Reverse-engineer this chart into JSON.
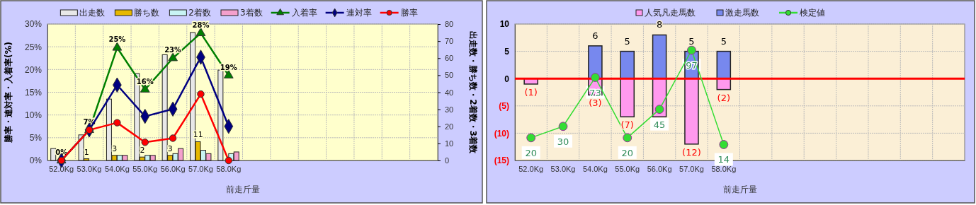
{
  "chart_data": [
    {
      "type": "bar",
      "xlabel": "前走斤量",
      "ylabel": "勝率・連対率・入着率(%)",
      "y2label": "出走数・勝ち数・2着数・3着数",
      "categories": [
        "52.0Kg",
        "53.0Kg",
        "54.0Kg",
        "55.0Kg",
        "56.0Kg",
        "57.0Kg",
        "58.0Kg",
        null,
        null,
        null,
        null,
        null,
        null,
        null
      ],
      "series": [
        {
          "name": "出走数",
          "axis": "y2",
          "color": "#e8e8e8",
          "values": [
            7,
            15,
            36,
            51,
            62,
            75,
            53,
            null,
            null,
            null,
            null,
            null,
            null,
            null
          ]
        },
        {
          "name": "勝ち数",
          "axis": "y2",
          "color": "#e6b800",
          "values": [
            0,
            1,
            3,
            2,
            3,
            11,
            0,
            null,
            null,
            null,
            null,
            null,
            null,
            null
          ],
          "value_labels": [
            null,
            "1",
            "3",
            "2",
            "3",
            "11",
            null,
            null,
            null,
            null,
            null,
            null,
            null,
            null
          ]
        },
        {
          "name": "2着数",
          "axis": "y2",
          "color": "#c8f4f4",
          "values": [
            0,
            0,
            3,
            3,
            4,
            6,
            4,
            null,
            null,
            null,
            null,
            null,
            null,
            null
          ]
        },
        {
          "name": "3着数",
          "axis": "y2",
          "color": "#f4a0cc",
          "values": [
            0,
            0,
            3,
            3,
            7,
            4,
            5,
            null,
            null,
            null,
            null,
            null,
            null,
            null
          ]
        },
        {
          "name": "入着率",
          "type": "line",
          "marker": "triangle",
          "color": "#008000",
          "values": [
            0,
            6.7,
            24.8,
            15.6,
            22.5,
            28.0,
            18.7,
            null,
            null,
            null,
            null,
            null,
            null,
            null
          ],
          "value_labels": [
            "0%",
            "7%",
            "25%",
            "16%",
            "23%",
            "28%",
            "19%",
            null,
            null,
            null,
            null,
            null,
            null,
            null
          ]
        },
        {
          "name": "連対率",
          "type": "line",
          "marker": "diamond",
          "color": "#000080",
          "values": [
            0,
            6.7,
            16.6,
            9.7,
            11.3,
            22.7,
            7.5,
            null,
            null,
            null,
            null,
            null,
            null,
            null
          ]
        },
        {
          "name": "勝率",
          "type": "line",
          "marker": "circle",
          "color": "#ff0000",
          "values": [
            0,
            6.7,
            8.3,
            4.0,
            4.9,
            14.6,
            0,
            null,
            null,
            null,
            null,
            null,
            null,
            null
          ]
        }
      ],
      "ylim": [
        0,
        30
      ],
      "yticks": [
        {
          "value": 0,
          "label": "0%"
        },
        {
          "value": 5,
          "label": "5%"
        },
        {
          "value": 10,
          "label": "10%"
        },
        {
          "value": 15,
          "label": "15%"
        },
        {
          "value": 20,
          "label": "20%"
        },
        {
          "value": 25,
          "label": "25%"
        },
        {
          "value": 30,
          "label": "30%"
        }
      ],
      "y2lim": [
        0,
        80
      ],
      "y2ticks": [
        0,
        10,
        20,
        30,
        40,
        50,
        60,
        70,
        80
      ],
      "grid": true,
      "legend": "top"
    },
    {
      "type": "bar",
      "xlabel": "前走斤量",
      "stacked": true,
      "categories": [
        "52.0Kg",
        "53.0Kg",
        "54.0Kg",
        "55.0Kg",
        "56.0Kg",
        "57.0Kg",
        "58.0Kg",
        null,
        null,
        null,
        null,
        null,
        null,
        null
      ],
      "series": [
        {
          "name": "人気凡走馬数",
          "color": "#ff99ee",
          "values": [
            -1,
            null,
            -3,
            -7,
            -7,
            -12,
            -2,
            null,
            null,
            null,
            null,
            null,
            null,
            null
          ],
          "value_labels": [
            "(1)",
            null,
            "(3)",
            "(7)",
            null,
            "(12)",
            "(2)",
            null,
            null,
            null,
            null,
            null,
            null,
            null
          ]
        },
        {
          "name": "激走馬数",
          "color": "#7788ee",
          "values": [
            null,
            null,
            6,
            5,
            8,
            5,
            5,
            null,
            null,
            null,
            null,
            null,
            null,
            null
          ],
          "value_labels": [
            null,
            null,
            "6",
            "5",
            "8",
            "5",
            "5",
            null,
            null,
            null,
            null,
            null,
            null,
            null
          ]
        },
        {
          "name": "検定値",
          "type": "line",
          "axis": "y2",
          "marker": "circle",
          "color": "#33dd33",
          "values": [
            20,
            30,
            73,
            20,
            45,
            97,
            14,
            null,
            null,
            null,
            null,
            null,
            null,
            null
          ]
        }
      ],
      "y2lim": [
        0,
        120
      ],
      "data_labels": true,
      "ylim": [
        -15,
        10
      ],
      "yticks": [
        {
          "value": -15,
          "label": "(15)"
        },
        {
          "value": -10,
          "label": "(10)"
        },
        {
          "value": -5,
          "label": "(5)"
        },
        0,
        5,
        10
      ],
      "ref_lines": [
        {
          "axis": "y",
          "value": 0,
          "color": "#ff0000"
        }
      ],
      "grid": true,
      "legend": "top"
    }
  ]
}
